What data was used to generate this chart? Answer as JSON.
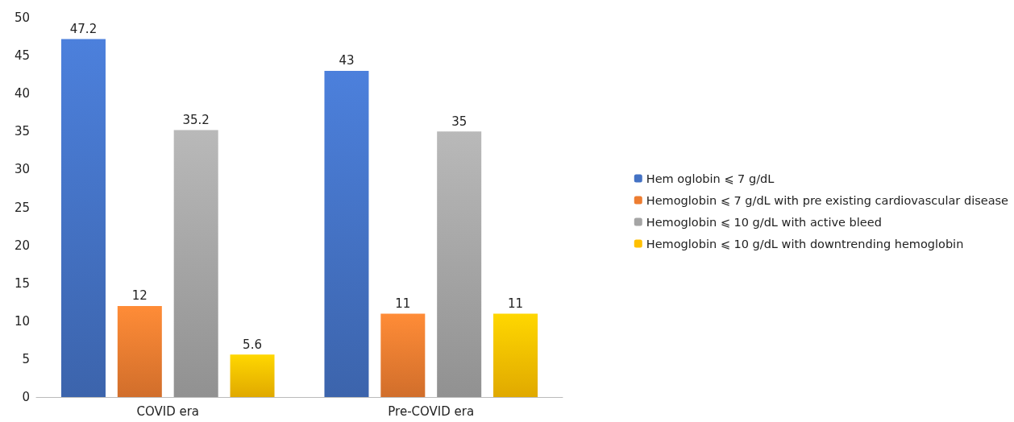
{
  "chart_data": {
    "type": "bar",
    "categories": [
      "COVID era",
      "Pre-COVID era"
    ],
    "series": [
      {
        "name": "Hem oglobin ⩽ 7 g/dL",
        "color": "#4472c4",
        "values": [
          47.2,
          43
        ]
      },
      {
        "name": "Hemoglobin ⩽ 7 g/dL with pre existing cardiovascular disease",
        "color": "#ed7d31",
        "values": [
          12,
          11
        ]
      },
      {
        "name": "Hemoglobin ⩽ 10 g/dL with active bleed",
        "color": "#a5a5a5",
        "values": [
          35.2,
          35
        ]
      },
      {
        "name": "Hemoglobin ⩽ 10 g/dL with downtrending hemoglobin",
        "color": "#ffc000",
        "values": [
          5.6,
          11
        ]
      }
    ],
    "ylim": [
      0,
      50
    ],
    "yticks": [
      0,
      5,
      10,
      15,
      20,
      25,
      30,
      35,
      40,
      45,
      50
    ],
    "grid": false,
    "legend": "right",
    "data_labels": true
  }
}
